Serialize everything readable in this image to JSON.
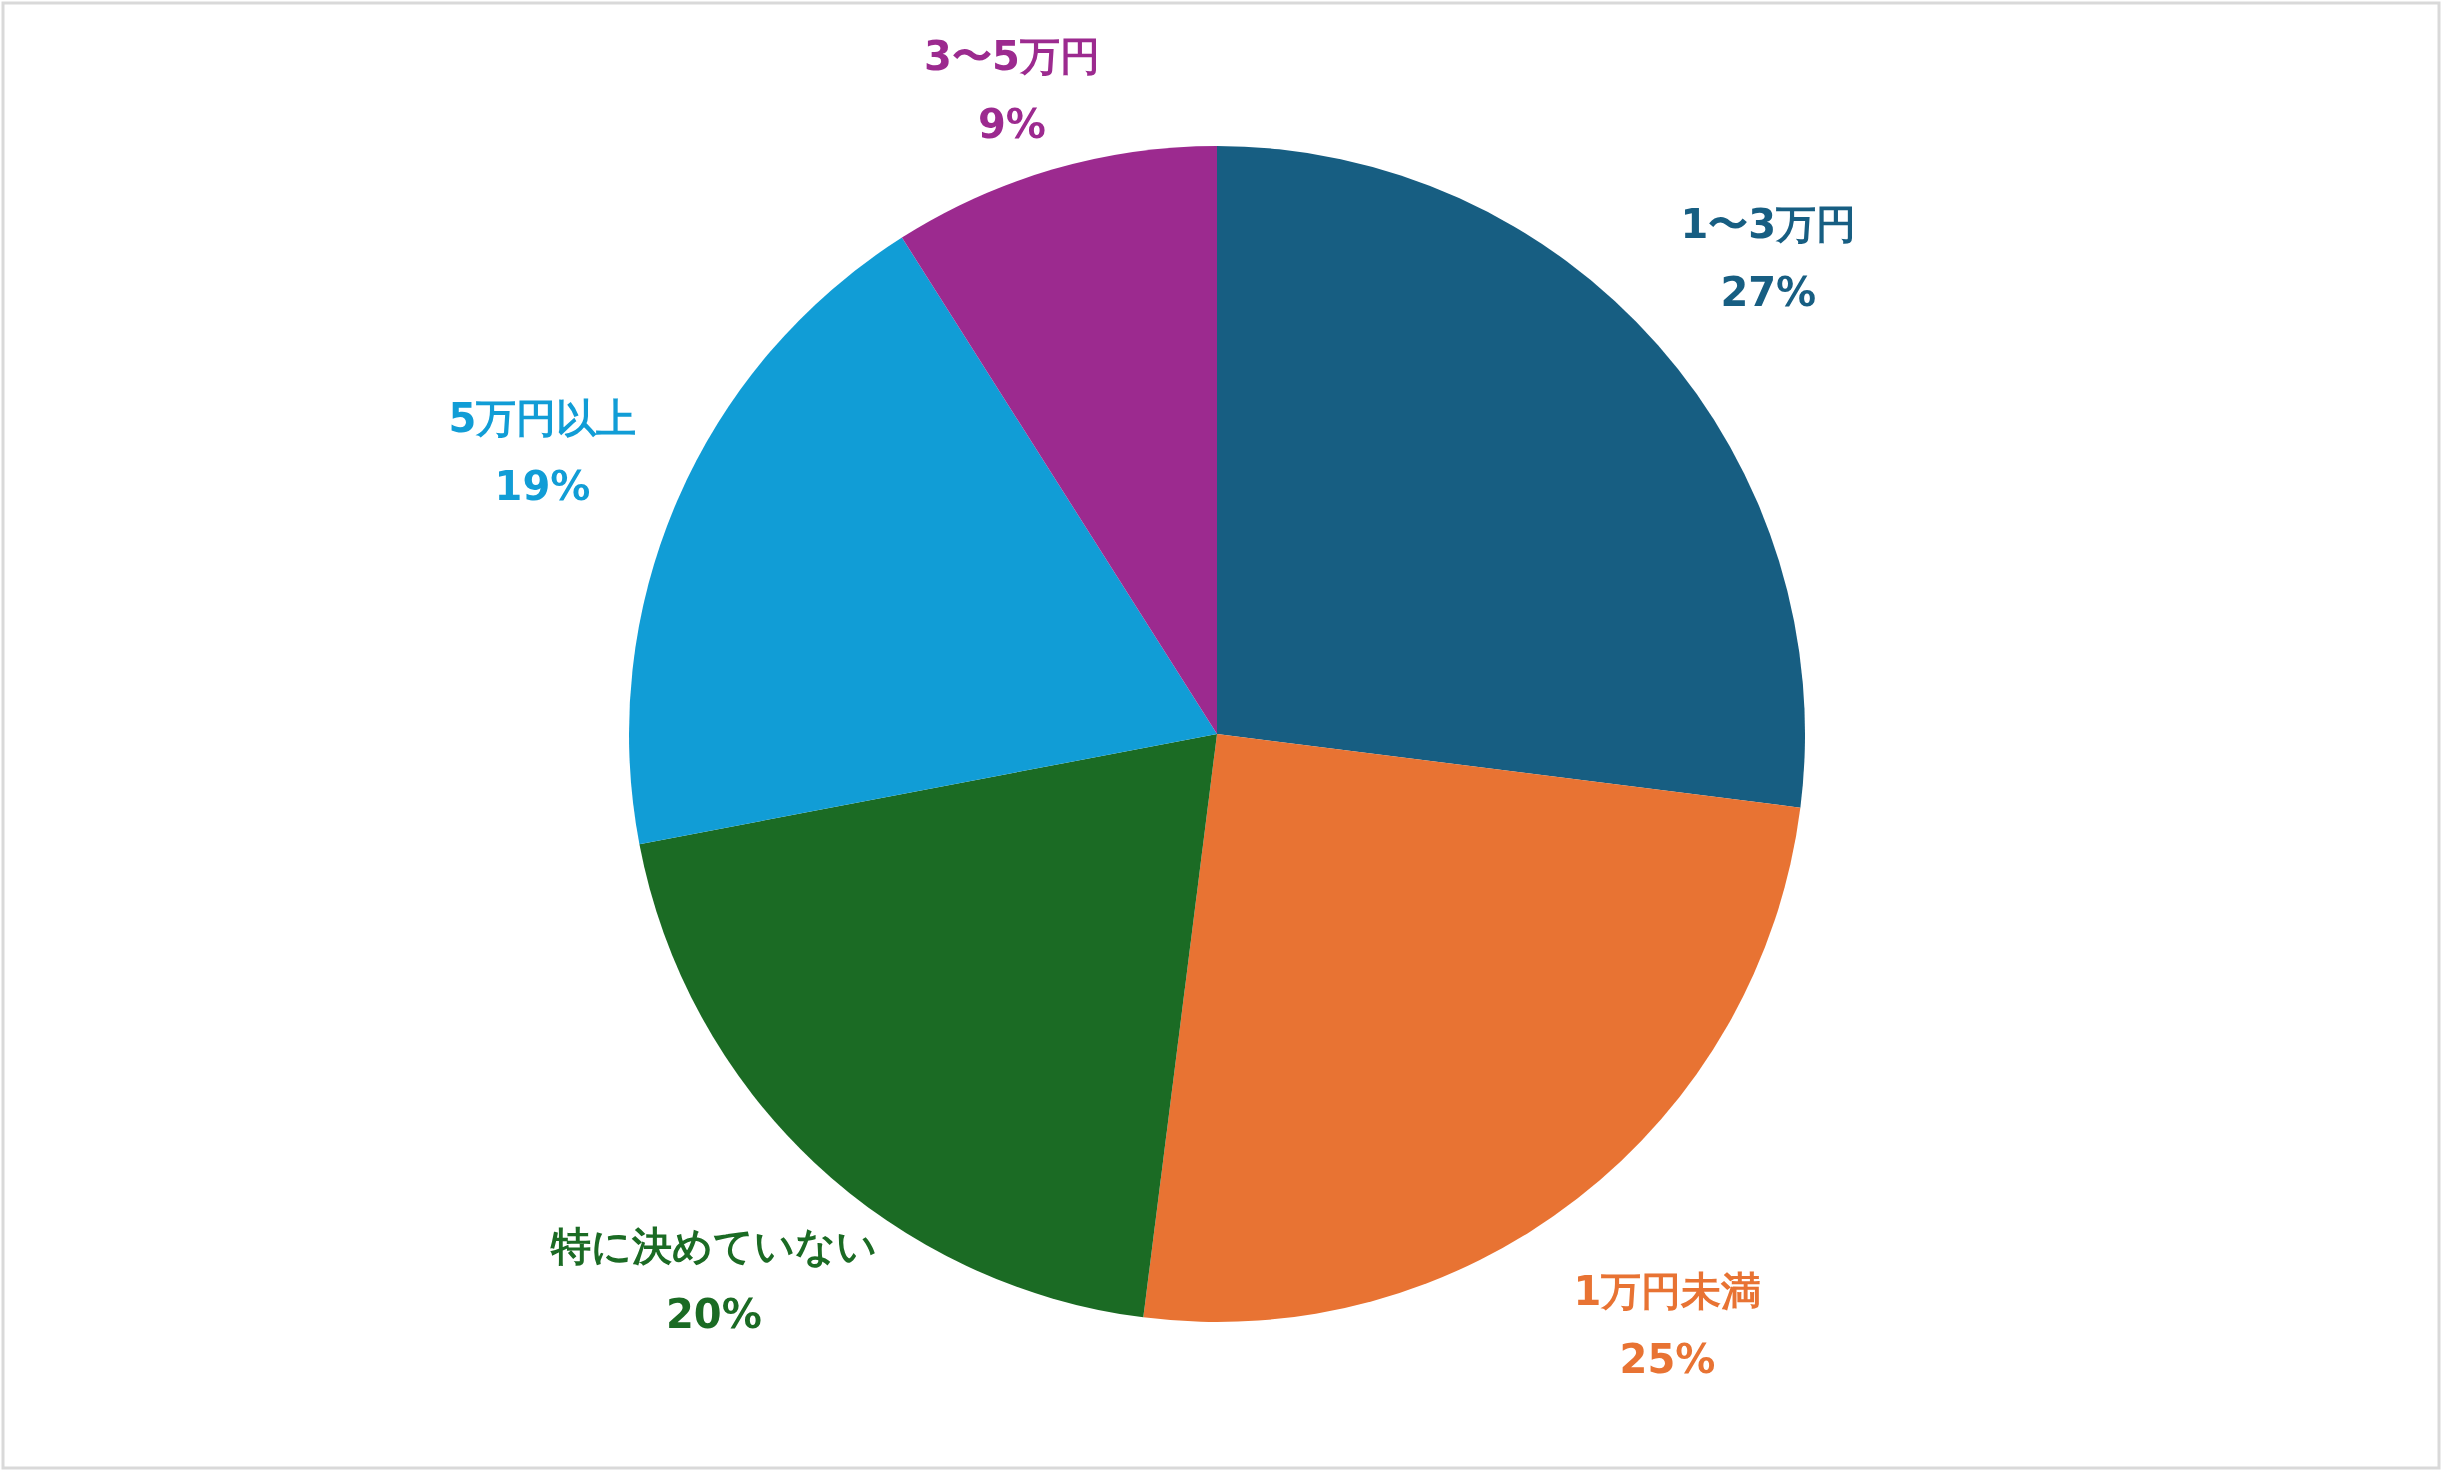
{
  "chart_data": {
    "type": "pie",
    "categories": [
      "1〜3万円",
      "1万円未満",
      "特に決めていない",
      "5万円以上",
      "3〜5万円"
    ],
    "values": [
      27,
      25,
      20,
      19,
      9
    ],
    "value_labels": [
      "27%",
      "25%",
      "20%",
      "19%",
      "9%"
    ],
    "colors": [
      "#175e82",
      "#e87333",
      "#1b6b24",
      "#119dd6",
      "#9c2a8f"
    ]
  }
}
